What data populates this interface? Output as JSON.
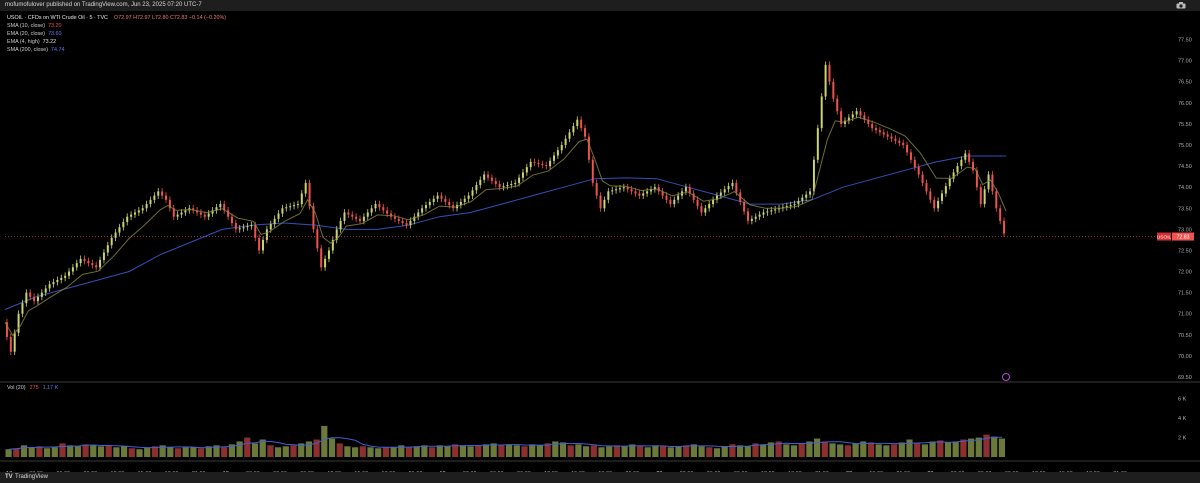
{
  "header": {
    "published": "mofumofulover published on TradingView.com, Jun 23, 2025 07:20 UTC-7"
  },
  "legend": {
    "symbol": "USOIL · CFDs on WTI Crude Oil · 5 · TVC",
    "ohlc": "O72.97 H72.97 L72.80 C72.83 −0.14 (−0.20%)",
    "ma": [
      {
        "label": "SMA (10, close)",
        "value": "73.20",
        "color": "#ef5350"
      },
      {
        "label": "EMA (20, close)",
        "value": "73.60",
        "color": "#5b7cf2"
      },
      {
        "label": "EMA (4, high)",
        "value": "73.22",
        "color": "#e6e6e6"
      },
      {
        "label": "SMA (200, close)",
        "value": "74.74",
        "color": "#5b7cf2"
      }
    ]
  },
  "price_tag": {
    "symbol": "USOIL",
    "value": "72.83"
  },
  "volume_legend": {
    "label": "Vol (20)",
    "value1": "275",
    "value2": "1.17 K"
  },
  "footer": {
    "brand": "TradingView",
    "logo": "TV"
  },
  "colors": {
    "background": "#000000",
    "up": "#c9d36f",
    "down": "#ef5350",
    "ema": "#8a8a3c",
    "sma200": "#3150b9",
    "vol_ma": "#3f60d8",
    "price_line": "#ef5350"
  },
  "chart_data": {
    "type": "line",
    "y_axis": {
      "min": 69.5,
      "max": 77.75,
      "ticks": [
        "77.50",
        "77.00",
        "76.50",
        "76.00",
        "75.50",
        "75.00",
        "74.50",
        "74.00",
        "73.50",
        "73.00",
        "72.50",
        "72.00",
        "71.50",
        "71.00",
        "70.50",
        "70.00",
        "69.50",
        "69.00"
      ]
    },
    "volume_axis": {
      "ticks": [
        "6 K",
        "4 K",
        "2 K"
      ]
    },
    "x_ticks": [
      "17",
      "03:00",
      "06:00",
      "09:00",
      "12:00",
      "15:00",
      "18:00",
      "21:00",
      "18",
      "03:00",
      "06:00",
      "09:00",
      "12:00",
      "15:00",
      "18:00",
      "21:00",
      "19",
      "03:00",
      "06:00",
      "09:00",
      "12:00",
      "15:00",
      "18:00",
      "21:00",
      "20",
      "03:00",
      "06:00",
      "09:00",
      "12:00",
      "18:00",
      "21:00",
      "22",
      "19:00",
      "21:00",
      "23",
      "03:00",
      "06:00",
      "09:00",
      "12:00",
      "15:00",
      "18:00",
      "21:00"
    ],
    "price_series": [
      [
        0,
        70.8
      ],
      [
        1,
        70.1
      ],
      [
        2,
        71.0
      ],
      [
        3,
        71.5
      ],
      [
        4,
        71.3
      ],
      [
        6,
        71.7
      ],
      [
        8,
        71.9
      ],
      [
        10,
        72.3
      ],
      [
        12,
        72.1
      ],
      [
        14,
        72.8
      ],
      [
        16,
        73.3
      ],
      [
        18,
        73.5
      ],
      [
        20,
        73.9
      ],
      [
        21,
        73.7
      ],
      [
        22,
        73.3
      ],
      [
        24,
        73.5
      ],
      [
        26,
        73.3
      ],
      [
        28,
        73.6
      ],
      [
        30,
        73.0
      ],
      [
        32,
        73.1
      ],
      [
        33,
        72.5
      ],
      [
        34,
        73.0
      ],
      [
        36,
        73.5
      ],
      [
        38,
        73.6
      ],
      [
        39,
        74.1
      ],
      [
        40,
        73.0
      ],
      [
        41,
        72.1
      ],
      [
        42,
        72.5
      ],
      [
        43,
        73.0
      ],
      [
        44,
        73.4
      ],
      [
        46,
        73.2
      ],
      [
        48,
        73.6
      ],
      [
        50,
        73.3
      ],
      [
        52,
        73.1
      ],
      [
        54,
        73.5
      ],
      [
        56,
        73.8
      ],
      [
        58,
        73.5
      ],
      [
        60,
        73.8
      ],
      [
        62,
        74.3
      ],
      [
        64,
        74.0
      ],
      [
        66,
        74.1
      ],
      [
        68,
        74.6
      ],
      [
        70,
        74.5
      ],
      [
        72,
        75.0
      ],
      [
        74,
        75.6
      ],
      [
        75,
        75.2
      ],
      [
        76,
        74.1
      ],
      [
        77,
        73.5
      ],
      [
        78,
        73.9
      ],
      [
        80,
        74.0
      ],
      [
        82,
        73.8
      ],
      [
        84,
        74.0
      ],
      [
        86,
        73.6
      ],
      [
        88,
        74.0
      ],
      [
        90,
        73.4
      ],
      [
        92,
        73.8
      ],
      [
        94,
        74.1
      ],
      [
        96,
        73.2
      ],
      [
        98,
        73.4
      ],
      [
        100,
        73.5
      ],
      [
        102,
        73.6
      ],
      [
        104,
        73.9
      ],
      [
        106,
        76.9
      ],
      [
        107,
        76.1
      ],
      [
        108,
        75.5
      ],
      [
        110,
        75.8
      ],
      [
        112,
        75.4
      ],
      [
        114,
        75.2
      ],
      [
        116,
        75.0
      ],
      [
        118,
        74.3
      ],
      [
        120,
        73.5
      ],
      [
        122,
        74.2
      ],
      [
        124,
        74.8
      ],
      [
        125,
        74.4
      ],
      [
        126,
        73.6
      ],
      [
        127,
        74.3
      ],
      [
        128,
        73.5
      ],
      [
        129,
        72.9
      ]
    ],
    "sma200_series": [
      [
        0,
        71.1
      ],
      [
        4,
        71.4
      ],
      [
        8,
        71.6
      ],
      [
        12,
        71.8
      ],
      [
        16,
        72.0
      ],
      [
        20,
        72.4
      ],
      [
        24,
        72.7
      ],
      [
        28,
        73.0
      ],
      [
        32,
        73.1
      ],
      [
        36,
        73.15
      ],
      [
        40,
        73.1
      ],
      [
        44,
        73.0
      ],
      [
        48,
        73.0
      ],
      [
        52,
        73.1
      ],
      [
        56,
        73.3
      ],
      [
        60,
        73.4
      ],
      [
        64,
        73.6
      ],
      [
        68,
        73.8
      ],
      [
        72,
        74.0
      ],
      [
        76,
        74.2
      ],
      [
        80,
        74.22
      ],
      [
        84,
        74.2
      ],
      [
        88,
        74.0
      ],
      [
        92,
        73.8
      ],
      [
        96,
        73.6
      ],
      [
        100,
        73.6
      ],
      [
        104,
        73.7
      ],
      [
        108,
        74.0
      ],
      [
        112,
        74.2
      ],
      [
        116,
        74.4
      ],
      [
        120,
        74.6
      ],
      [
        124,
        74.74
      ],
      [
        129,
        74.74
      ]
    ],
    "volume_series": [
      0.8,
      0.9,
      1.2,
      1.0,
      1.1,
      0.9,
      1.0,
      1.4,
      1.2,
      1.1,
      1.3,
      1.2,
      1.1,
      1.2,
      1.0,
      1.1,
      0.9,
      0.8,
      1.0,
      1.1,
      1.2,
      1.0,
      0.9,
      1.0,
      1.0,
      0.9,
      1.1,
      1.2,
      1.0,
      1.3,
      1.6,
      2.0,
      1.4,
      1.8,
      1.2,
      1.0,
      1.1,
      1.2,
      1.4,
      1.6,
      1.8,
      3.2,
      1.9,
      1.4,
      1.1,
      1.0,
      1.1,
      1.0,
      0.9,
      1.0,
      1.0,
      1.2,
      1.0,
      1.1,
      1.2,
      1.0,
      1.2,
      1.1,
      1.3,
      1.2,
      1.1,
      1.2,
      1.3,
      1.4,
      1.2,
      1.3,
      1.2,
      1.1,
      1.3,
      1.2,
      1.4,
      1.6,
      1.5,
      1.2,
      1.3,
      1.1,
      1.2,
      1.0,
      1.1,
      1.2,
      1.1,
      1.3,
      1.1,
      1.0,
      1.2,
      1.1,
      1.0,
      1.1,
      1.2,
      1.3,
      1.1,
      1.0,
      0.9,
      1.1,
      1.3,
      1.2,
      1.1,
      1.4,
      1.3,
      1.5,
      1.6,
      1.3,
      1.2,
      1.4,
      1.6,
      1.9,
      1.6,
      1.4,
      1.3,
      1.2,
      1.4,
      1.6,
      1.5,
      1.3,
      1.2,
      1.3,
      1.5,
      1.8,
      1.4,
      1.3,
      1.6,
      1.7,
      1.5,
      1.6,
      1.8,
      1.9,
      2.0,
      2.3,
      2.1,
      1.9
    ]
  }
}
